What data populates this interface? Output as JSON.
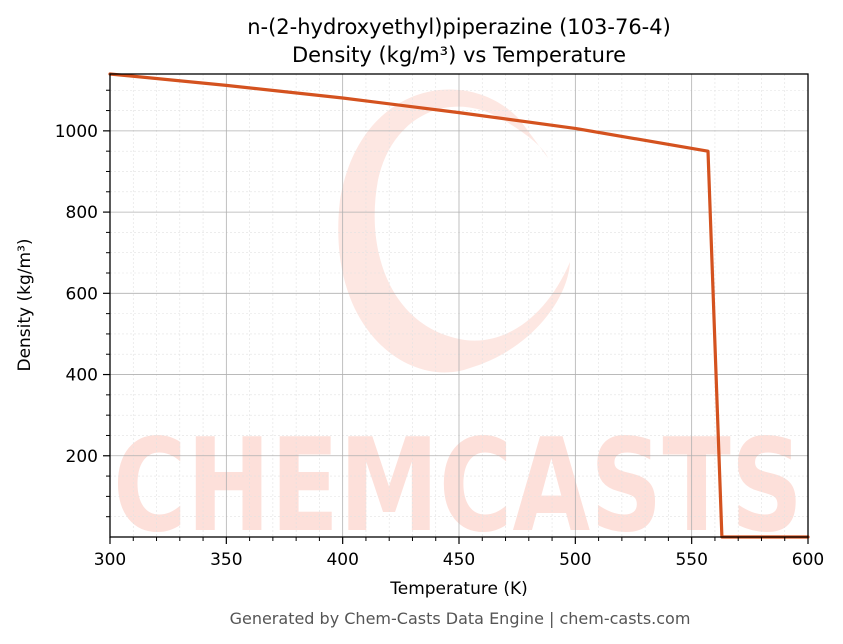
{
  "chart_data": {
    "type": "line",
    "title": "n-(2-hydroxyethyl)piperazine (103-76-4)",
    "subtitle": "Density (kg/m³) vs Temperature",
    "xlabel": "Temperature (K)",
    "ylabel": "Density (kg/m³)",
    "xlim": [
      300,
      600
    ],
    "ylim": [
      0,
      1140
    ],
    "x_ticks": [
      300,
      350,
      400,
      450,
      500,
      550,
      600
    ],
    "y_ticks": [
      200,
      400,
      600,
      800,
      1000
    ],
    "grid": true,
    "series": [
      {
        "color": "#d4521f",
        "x": [
          300,
          350,
          400,
          450,
          500,
          557,
          563,
          600
        ],
        "y": [
          1140,
          1112,
          1081,
          1045,
          1006,
          950,
          0,
          0
        ]
      }
    ]
  },
  "watermark": {
    "text": "CHEMCASTS",
    "color": "#fde0da"
  },
  "footer": "Generated by Chem-Casts Data Engine | chem-casts.com"
}
